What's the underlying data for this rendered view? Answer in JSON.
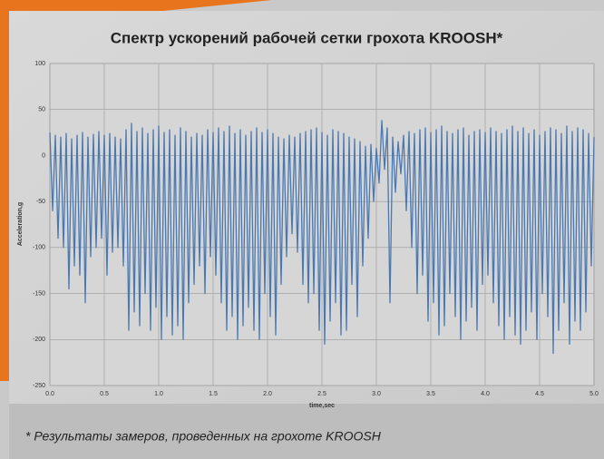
{
  "chart_data": {
    "type": "line",
    "title": "Спектр ускорений рабочей сетки грохота KROOSH*",
    "xlabel": "time,sec",
    "ylabel": "Acceleration,g",
    "note": "* Результаты замеров, проведенных на грохоте KROOSH",
    "color": "#4a78b0",
    "grid": true,
    "xlim": [
      0,
      5
    ],
    "ylim": [
      -250,
      100
    ],
    "xticks": [
      {
        "value": 0,
        "label": "0.0"
      },
      0.5,
      {
        "value": 1,
        "label": "1.0"
      },
      1.5,
      {
        "value": 2,
        "label": "2.0"
      },
      2.5,
      {
        "value": 3,
        "label": "3.0"
      },
      3.5,
      {
        "value": 4,
        "label": "4.0"
      },
      4.5,
      {
        "value": 5,
        "label": "5.0"
      }
    ],
    "yticks": [
      -250,
      -200,
      -150,
      -100,
      -50,
      0,
      50,
      100
    ],
    "x": [
      0,
      0.025,
      0.05,
      0.075,
      0.1,
      0.125,
      0.15,
      0.175,
      0.2,
      0.225,
      0.25,
      0.275,
      0.3,
      0.325,
      0.35,
      0.375,
      0.4,
      0.425,
      0.45,
      0.475,
      0.5,
      0.525,
      0.55,
      0.575,
      0.6,
      0.625,
      0.65,
      0.675,
      0.7,
      0.725,
      0.75,
      0.775,
      0.8,
      0.825,
      0.85,
      0.875,
      0.9,
      0.925,
      0.95,
      0.975,
      1,
      1.025,
      1.05,
      1.075,
      1.1,
      1.125,
      1.15,
      1.175,
      1.2,
      1.225,
      1.25,
      1.275,
      1.3,
      1.325,
      1.35,
      1.375,
      1.4,
      1.425,
      1.45,
      1.475,
      1.5,
      1.525,
      1.55,
      1.575,
      1.6,
      1.625,
      1.65,
      1.675,
      1.7,
      1.725,
      1.75,
      1.775,
      1.8,
      1.825,
      1.85,
      1.875,
      1.9,
      1.925,
      1.95,
      1.975,
      2,
      2.025,
      2.05,
      2.075,
      2.1,
      2.125,
      2.15,
      2.175,
      2.2,
      2.225,
      2.25,
      2.275,
      2.3,
      2.325,
      2.35,
      2.375,
      2.4,
      2.425,
      2.45,
      2.475,
      2.5,
      2.525,
      2.55,
      2.575,
      2.6,
      2.625,
      2.65,
      2.675,
      2.7,
      2.725,
      2.75,
      2.775,
      2.8,
      2.825,
      2.85,
      2.875,
      2.9,
      2.925,
      2.95,
      2.975,
      3,
      3.025,
      3.05,
      3.075,
      3.1,
      3.125,
      3.15,
      3.175,
      3.2,
      3.225,
      3.25,
      3.275,
      3.3,
      3.325,
      3.35,
      3.375,
      3.4,
      3.425,
      3.45,
      3.475,
      3.5,
      3.525,
      3.55,
      3.575,
      3.6,
      3.625,
      3.65,
      3.675,
      3.7,
      3.725,
      3.75,
      3.775,
      3.8,
      3.825,
      3.85,
      3.875,
      3.9,
      3.925,
      3.95,
      3.975,
      4,
      4.025,
      4.05,
      4.075,
      4.1,
      4.125,
      4.15,
      4.175,
      4.2,
      4.225,
      4.25,
      4.275,
      4.3,
      4.325,
      4.35,
      4.375,
      4.4,
      4.425,
      4.45,
      4.475,
      4.5,
      4.525,
      4.55,
      4.575,
      4.6,
      4.625,
      4.65,
      4.675,
      4.7,
      4.725,
      4.75,
      4.775,
      4.8,
      4.825,
      4.85,
      4.875,
      4.9,
      4.925,
      4.95,
      4.975,
      5
    ],
    "values": [
      25,
      -60,
      22,
      -90,
      20,
      -100,
      24,
      -145,
      18,
      -120,
      22,
      -130,
      25,
      -160,
      20,
      -110,
      23,
      -100,
      26,
      -90,
      22,
      -130,
      24,
      -105,
      20,
      -100,
      18,
      -120,
      28,
      -190,
      35,
      -170,
      26,
      -185,
      30,
      -150,
      24,
      -190,
      28,
      -165,
      32,
      -200,
      25,
      -175,
      28,
      -195,
      22,
      -185,
      30,
      -200,
      26,
      -160,
      20,
      -140,
      24,
      -120,
      22,
      -150,
      28,
      -110,
      25,
      -130,
      30,
      -160,
      26,
      -190,
      32,
      -175,
      24,
      -200,
      28,
      -185,
      22,
      -165,
      26,
      -190,
      30,
      -200,
      25,
      -150,
      28,
      -175,
      24,
      -195,
      20,
      -140,
      18,
      -110,
      22,
      -85,
      20,
      -105,
      24,
      -140,
      26,
      -160,
      28,
      -150,
      30,
      -190,
      25,
      -205,
      22,
      -180,
      28,
      -160,
      26,
      -195,
      24,
      -190,
      20,
      -140,
      18,
      -175,
      15,
      -120,
      10,
      -90,
      12,
      -50,
      8,
      -30,
      38,
      -15,
      30,
      -160,
      20,
      -40,
      15,
      -20,
      22,
      -60,
      26,
      -100,
      24,
      -150,
      28,
      -130,
      30,
      -180,
      25,
      -160,
      28,
      -195,
      32,
      -185,
      26,
      -150,
      24,
      -175,
      28,
      -200,
      30,
      -180,
      22,
      -165,
      26,
      -190,
      28,
      -140,
      25,
      -130,
      30,
      -160,
      26,
      -185,
      24,
      -200,
      28,
      -175,
      32,
      -195,
      26,
      -205,
      30,
      -190,
      24,
      -170,
      28,
      -200,
      22,
      -150,
      26,
      -175,
      30,
      -215,
      28,
      -190,
      24,
      -160,
      32,
      -205,
      26,
      -180,
      30,
      -190,
      28,
      -170,
      24,
      -120,
      20
    ]
  }
}
